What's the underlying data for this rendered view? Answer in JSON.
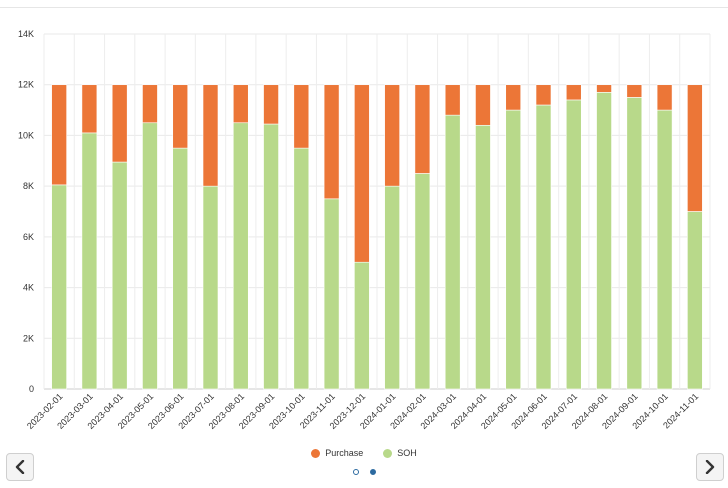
{
  "chart_data": {
    "type": "bar",
    "stacked": true,
    "categories": [
      "2023-02-01",
      "2023-03-01",
      "2023-04-01",
      "2023-05-01",
      "2023-06-01",
      "2023-07-01",
      "2023-08-01",
      "2023-09-01",
      "2023-10-01",
      "2023-11-01",
      "2023-12-01",
      "2024-01-01",
      "2024-02-01",
      "2024-03-01",
      "2024-04-01",
      "2024-05-01",
      "2024-06-01",
      "2024-07-01",
      "2024-08-01",
      "2024-09-01",
      "2024-10-01",
      "2024-11-01"
    ],
    "series": [
      {
        "name": "SOH",
        "color": "#b8d98a",
        "values": [
          8050,
          10100,
          8950,
          10500,
          9500,
          8000,
          10500,
          10450,
          9500,
          7500,
          5000,
          8000,
          8500,
          10800,
          10400,
          11000,
          11200,
          11400,
          11700,
          11500,
          11000,
          7000
        ]
      },
      {
        "name": "Purchase",
        "color": "#ec7637",
        "values": [
          3950,
          1900,
          3050,
          1500,
          2500,
          4000,
          1500,
          1550,
          2500,
          4500,
          7000,
          4000,
          3500,
          1200,
          1600,
          1000,
          800,
          600,
          300,
          500,
          1000,
          5000
        ]
      }
    ],
    "ylim": [
      0,
      14000
    ],
    "yticks": [
      0,
      2000,
      4000,
      6000,
      8000,
      10000,
      12000,
      14000
    ],
    "ytick_labels": [
      "0",
      "2K",
      "4K",
      "6K",
      "8K",
      "10K",
      "12K",
      "14K"
    ],
    "grid": true,
    "legend_position": "bottom-center",
    "legend": [
      {
        "label": "Purchase",
        "color": "#ec7637"
      },
      {
        "label": "SOH",
        "color": "#b8d98a"
      }
    ],
    "xlabel": "",
    "ylabel": "",
    "title": ""
  },
  "navigation": {
    "prev_icon": "chevron-left-icon",
    "next_icon": "chevron-right-icon",
    "pages": 2,
    "active_page": 2
  }
}
